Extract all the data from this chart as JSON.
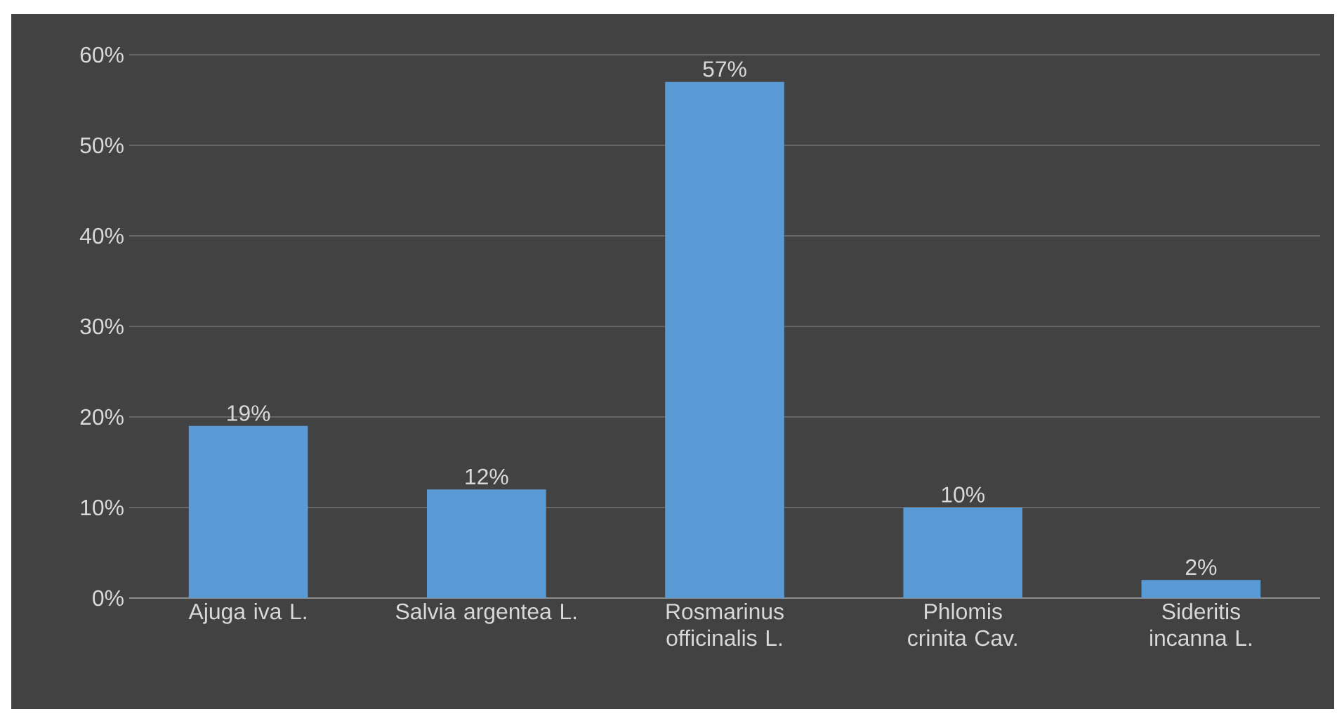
{
  "chart_data": {
    "type": "bar",
    "categories": [
      "Ajuga iva L.",
      "Salvia argentea L.",
      "Rosmarinus officinalis L.",
      "Phlomis crinita Cav.",
      "Sideritis incanna L."
    ],
    "values": [
      19,
      12,
      57,
      10,
      2
    ],
    "value_labels": [
      "19%",
      "12%",
      "57%",
      "10%",
      "2%"
    ],
    "color": "#5b9bd5",
    "ylim": [
      0,
      60
    ],
    "yticks": [
      {
        "value": 0,
        "label": "0%"
      },
      {
        "value": 10,
        "label": "10%"
      },
      {
        "value": 20,
        "label": "20%"
      },
      {
        "value": 30,
        "label": "30%"
      },
      {
        "value": 40,
        "label": "40%"
      },
      {
        "value": 50,
        "label": "50%"
      },
      {
        "value": 60,
        "label": "60%"
      }
    ],
    "grid": "y"
  }
}
